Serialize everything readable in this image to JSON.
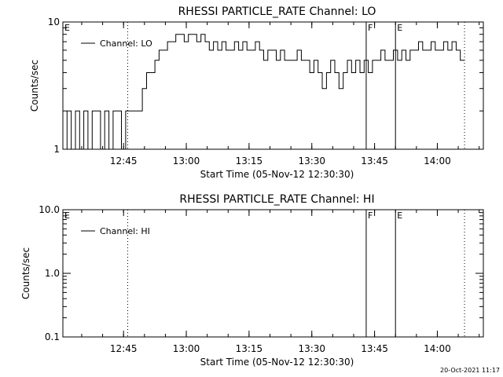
{
  "chart_data": [
    {
      "type": "line",
      "title": "RHESSI PARTICLE_RATE Channel: LO",
      "xlabel": "Start Time (05-Nov-12 12:30:30)",
      "ylabel": "Counts/sec",
      "yscale": "log",
      "ylim": [
        1,
        10
      ],
      "yticks": [
        "1",
        "10"
      ],
      "xlim": [
        "12:30:30",
        "14:11:00"
      ],
      "xticks": [
        "12:45",
        "13:00",
        "13:15",
        "13:30",
        "13:45",
        "14:00"
      ],
      "grid": false,
      "legend_position": "top-left",
      "series": [
        {
          "name": "Channel: LO",
          "x": [
            "12:31",
            "12:32",
            "12:33",
            "12:34",
            "12:35",
            "12:36",
            "12:37",
            "12:38",
            "12:39",
            "12:40",
            "12:41",
            "12:42",
            "12:43",
            "12:44",
            "12:45",
            "12:46",
            "12:47",
            "12:48",
            "12:49",
            "12:50",
            "12:51",
            "12:52",
            "12:53",
            "12:54",
            "12:55",
            "12:56",
            "12:57",
            "12:58",
            "12:59",
            "13:00",
            "13:01",
            "13:02",
            "13:03",
            "13:04",
            "13:05",
            "13:06",
            "13:07",
            "13:08",
            "13:09",
            "13:10",
            "13:11",
            "13:12",
            "13:13",
            "13:14",
            "13:15",
            "13:16",
            "13:17",
            "13:18",
            "13:19",
            "13:20",
            "13:21",
            "13:22",
            "13:23",
            "13:24",
            "13:25",
            "13:26",
            "13:27",
            "13:28",
            "13:29",
            "13:30",
            "13:31",
            "13:32",
            "13:33",
            "13:34",
            "13:35",
            "13:36",
            "13:37",
            "13:38",
            "13:39",
            "13:40",
            "13:41",
            "13:42",
            "13:43",
            "13:44",
            "13:45",
            "13:46",
            "13:47",
            "13:48",
            "13:49",
            "13:50",
            "13:51",
            "13:52",
            "13:53",
            "13:54",
            "13:55",
            "13:56",
            "13:57",
            "13:58",
            "13:59",
            "14:00",
            "14:01",
            "14:02",
            "14:03",
            "14:04",
            "14:05",
            "14:06"
          ],
          "y": [
            1,
            2,
            1,
            2,
            1,
            2,
            1,
            2,
            2,
            1,
            2,
            1,
            2,
            2,
            1,
            2,
            2,
            2,
            2,
            3,
            4,
            4,
            5,
            6,
            6,
            7,
            7,
            8,
            8,
            7,
            8,
            8,
            7,
            8,
            7,
            6,
            7,
            6,
            7,
            6,
            6,
            7,
            6,
            7,
            6,
            6,
            7,
            6,
            5,
            6,
            6,
            5,
            6,
            5,
            5,
            5,
            6,
            5,
            5,
            4,
            5,
            4,
            3,
            4,
            5,
            4,
            3,
            4,
            5,
            4,
            5,
            4,
            5,
            4,
            5,
            5,
            6,
            5,
            5,
            6,
            5,
            6,
            5,
            6,
            6,
            7,
            6,
            6,
            7,
            6,
            6,
            7,
            6,
            7,
            6,
            5
          ]
        }
      ],
      "flags": [
        {
          "label": "E",
          "time": "12:30:30",
          "style": "solid"
        },
        {
          "label": "",
          "time": "12:46:00",
          "style": "dotted"
        },
        {
          "label": "F",
          "time": "13:43:00",
          "style": "solid"
        },
        {
          "label": "E",
          "time": "13:50:00",
          "style": "solid"
        },
        {
          "label": "",
          "time": "14:06:30",
          "style": "dotted"
        }
      ]
    },
    {
      "type": "line",
      "title": "RHESSI PARTICLE_RATE Channel: HI",
      "xlabel": "Start Time (05-Nov-12 12:30:30)",
      "ylabel": "Counts/sec",
      "yscale": "log",
      "ylim": [
        0.1,
        10
      ],
      "yticks": [
        "0.1",
        "1.0",
        "10.0"
      ],
      "xlim": [
        "12:30:30",
        "14:11:00"
      ],
      "xticks": [
        "12:45",
        "13:00",
        "13:15",
        "13:30",
        "13:45",
        "14:00"
      ],
      "grid": false,
      "legend_position": "top-left",
      "series": [
        {
          "name": "Channel: HI",
          "x": [],
          "y": []
        }
      ],
      "flags": [
        {
          "label": "E",
          "time": "12:30:30",
          "style": "solid"
        },
        {
          "label": "",
          "time": "12:46:00",
          "style": "dotted"
        },
        {
          "label": "F",
          "time": "13:43:00",
          "style": "solid"
        },
        {
          "label": "E",
          "time": "13:50:00",
          "style": "solid"
        },
        {
          "label": "",
          "time": "14:06:30",
          "style": "dotted"
        }
      ]
    }
  ],
  "footer": {
    "timestamp": "20-Oct-2021 11:17"
  }
}
